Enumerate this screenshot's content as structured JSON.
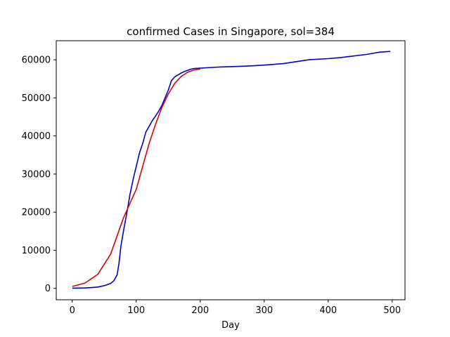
{
  "chart_data": {
    "type": "line",
    "title": "confirmed Cases in Singapore, sol=384",
    "xlabel": "Day",
    "ylabel": "",
    "xlim": [
      -25,
      520
    ],
    "ylim": [
      -3000,
      65000
    ],
    "xticks": [
      0,
      100,
      200,
      300,
      400,
      500
    ],
    "yticks": [
      0,
      10000,
      20000,
      30000,
      40000,
      50000,
      60000
    ],
    "grid": false,
    "series": [
      {
        "color": "#0000cc",
        "x": [
          0,
          10,
          20,
          30,
          40,
          50,
          60,
          65,
          70,
          73,
          76,
          80,
          85,
          90,
          95,
          100,
          105,
          110,
          115,
          120,
          125,
          130,
          135,
          140,
          145,
          150,
          155,
          160,
          165,
          170,
          175,
          180,
          185,
          190,
          200,
          210,
          220,
          230,
          250,
          280,
          300,
          330,
          350,
          370,
          400,
          420,
          440,
          460,
          480,
          497
        ],
        "y": [
          50,
          80,
          120,
          200,
          350,
          700,
          1300,
          2000,
          3500,
          6500,
          11000,
          15000,
          19500,
          24500,
          28500,
          32000,
          35500,
          38000,
          41000,
          42500,
          44000,
          45200,
          46500,
          48000,
          50000,
          52000,
          54500,
          55500,
          56000,
          56500,
          56900,
          57200,
          57500,
          57700,
          57800,
          57900,
          58000,
          58100,
          58200,
          58400,
          58600,
          59000,
          59500,
          60000,
          60300,
          60600,
          61000,
          61400,
          62000,
          62200
        ]
      },
      {
        "color": "#dd0000",
        "x": [
          0,
          20,
          40,
          60,
          80,
          100,
          110,
          120,
          130,
          140,
          150,
          160,
          170,
          180,
          190,
          200
        ],
        "y": [
          500,
          1400,
          3700,
          9000,
          18500,
          26000,
          32000,
          38000,
          43000,
          47500,
          51000,
          53800,
          55600,
          56700,
          57300,
          57600
        ]
      }
    ]
  }
}
